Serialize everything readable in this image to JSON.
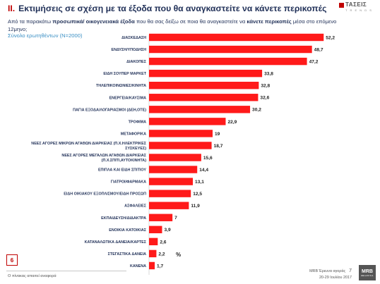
{
  "header": {
    "section_num": "II.",
    "title": "Εκτιμήσεις σε σχέση με τα έξοδα που θα αναγκαστείτε να κάνετε περικοπές",
    "subtitle_part1": "Από τα παρακάτω ",
    "subtitle_bold1": "προσωπικά/ οικογενειακά έξοδα",
    "subtitle_part2": " που θα σας δείξω σε ποια θα αναγκαστείτε να ",
    "subtitle_bold2": "κάνετε περικοπές",
    "subtitle_part3": " μέσα στο επόμενο 12μηνο;",
    "base": "Σύνολο ερωτηθέντων (Ν=2000)"
  },
  "logo": {
    "name": "ΤΑΣΕΙΣ",
    "sub": "T R E N D S"
  },
  "chart_data": {
    "type": "bar",
    "orientation": "horizontal",
    "unit": "%",
    "xlim": [
      0,
      60
    ],
    "grid": false,
    "bar_color": "#ff1a1a",
    "categories": [
      [
        "ΔΙΑΣΚΕΔΑΣΗ"
      ],
      [
        "ΕΝΔΥΣΗ/ΥΠΟΔΗΣΗ"
      ],
      [
        "ΔΙΑΚΟΠΕΣ"
      ],
      [
        "ΕΙΔΗ ΣΟΥΠΕΡ ΜΑΡΚΕΤ"
      ],
      [
        "ΤΗΛΕΠΙΚΟΙΝΩΝΙΕΣ/ΚΙΝΗΤΑ"
      ],
      [
        "ΕΝΕΡΓΕΙΑ/ΚΑΥΣΙΜΑ"
      ],
      [
        "ΠΑΓΙΑ ΕΞΟΔΑ/ΛΟΓΑΡΙΑΣΜΟΙ (ΔΕΗ,ΟΤΕ)"
      ],
      [
        "ΤΡΟΦΙΜΑ"
      ],
      [
        "ΜΕΤΑΦΟΡΙΚΑ"
      ],
      [
        "ΝΕΕΣ ΑΓΟΡΕΣ ΜΙΚΡΩΝ ΑΓΑΘΩΝ ΔΙΑΡΚΕΙΑΣ (Π.Χ.ΗΛΕΚΤΡΙΚΕΣ",
        "ΣΥΣΚΕΥΕΣ)"
      ],
      [
        "ΝΕΕΣ ΑΓΟΡΕΣ ΜΕΓΑΛΩΝ ΑΓΑΘΩΝ ΔΙΑΡΚΕΙΑΣ",
        "(Π.Χ.ΣΠΙΤΙ,ΑΥΤΟΚΙΝΗΤΑ)"
      ],
      [
        "ΕΠΙΠΛΑ ΚΑΙ ΕΙΔΗ ΣΠΙΤΙΟΥ"
      ],
      [
        "ΓΙΑΤΡΟΙ/ΦΑΡΜΑΚΑ"
      ],
      [
        "ΕΙΔΗ ΟΙΚΙΑΚΟΥ ΕΞΟΠΛΙΣΜΟΥ/ΕΙΔΗ ΠΡΟΣΩΠ"
      ],
      [
        "ΑΣΦΑΛΕΙΕΣ"
      ],
      [
        "ΕΚΠΑΙΔΕΥΣΗ/ΔΙΔΑΚΤΡΑ"
      ],
      [
        "ΕΝΟΙΚΙΑ ΚΑΤΟΙΚΙΑΣ"
      ],
      [
        "ΚΑΤΑΝΑΛΩΤΙΚΑ ΔΑΝΕΙΑ/ΚΑΡΤΕΣ"
      ],
      [
        "ΣΤΕΓΑΣΤΙΚΑ ΔΑΝΕΙΑ"
      ],
      [
        "ΚΑΝΕΝΑ"
      ]
    ],
    "values": [
      52.2,
      48.7,
      47.2,
      33.8,
      32.8,
      32.6,
      30.2,
      22.9,
      19,
      18.7,
      15.6,
      14.4,
      13.1,
      12.5,
      11.9,
      7,
      3.9,
      2.6,
      2.2,
      1.7
    ],
    "value_labels": [
      "52,2",
      "48,7",
      "47,2",
      "33,8",
      "32,8",
      "32,6",
      "30,2",
      "22,9",
      "19",
      "18,7",
      "15,6",
      "14,4",
      "13,1",
      "12,5",
      "11,9",
      "7",
      "3,9",
      "2,6",
      "2,2",
      "1,7"
    ]
  },
  "pct_label": "%",
  "page_box": "6",
  "footer": {
    "left": "Ο πίνακας απαιτεί αναφορά",
    "right_line1": "MRB Έρευνα αγοράς",
    "right_page": "7",
    "right_line2": "20-29 Ιουλίου 2017",
    "mrb": "MRB",
    "mrb_sub": "HELLAS S.A."
  }
}
